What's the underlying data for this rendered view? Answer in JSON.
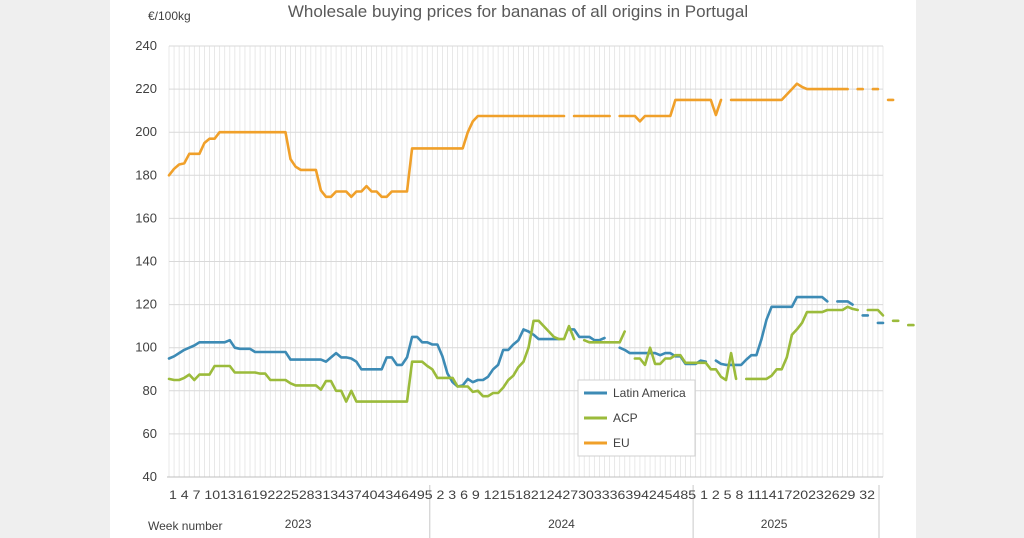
{
  "chart_data": {
    "type": "line",
    "title": "Wholesale buying prices for bananas of all origins in Portugal",
    "unit_label": "€/100kg",
    "xlabel": "Week number",
    "ylim": [
      40,
      240
    ],
    "y_ticks": [
      "40",
      "60",
      "80",
      "100",
      "120",
      "140",
      "160",
      "180",
      "200",
      "220",
      "240"
    ],
    "grid": true,
    "legend_position": "lower-middle",
    "x_tick_text": "1 4 7 10131619222528313437404346495 2 3 6 9 121518212427303336394245485 1 2 5 8 11141720232629 32",
    "years": [
      {
        "label": "2023",
        "start": 1,
        "end": 52
      },
      {
        "label": "2024",
        "start": 53,
        "end": 104
      },
      {
        "label": "2025",
        "start": 105,
        "end": 136
      }
    ],
    "x_week_ticks": [
      {
        "idx": 1,
        "label": "1"
      },
      {
        "idx": 4,
        "label": "4"
      },
      {
        "idx": 7,
        "label": "7"
      },
      {
        "idx": 10,
        "label": "10"
      },
      {
        "idx": 13,
        "label": "13"
      },
      {
        "idx": 16,
        "label": "16"
      },
      {
        "idx": 19,
        "label": "19"
      },
      {
        "idx": 22,
        "label": "22"
      },
      {
        "idx": 25,
        "label": "25"
      },
      {
        "idx": 28,
        "label": "28"
      },
      {
        "idx": 31,
        "label": "31"
      },
      {
        "idx": 34,
        "label": "34"
      },
      {
        "idx": 37,
        "label": "37"
      },
      {
        "idx": 40,
        "label": "40"
      },
      {
        "idx": 43,
        "label": "43"
      },
      {
        "idx": 46,
        "label": "46"
      },
      {
        "idx": 49,
        "label": "49"
      },
      {
        "idx": 52,
        "label": "52"
      },
      {
        "idx": 55,
        "label": "3"
      },
      {
        "idx": 58,
        "label": "6"
      },
      {
        "idx": 61,
        "label": "9"
      },
      {
        "idx": 64,
        "label": "12"
      },
      {
        "idx": 67,
        "label": "15"
      },
      {
        "idx": 70,
        "label": "18"
      },
      {
        "idx": 73,
        "label": "21"
      },
      {
        "idx": 76,
        "label": "24"
      },
      {
        "idx": 79,
        "label": "27"
      },
      {
        "idx": 82,
        "label": "30"
      },
      {
        "idx": 85,
        "label": "33"
      },
      {
        "idx": 88,
        "label": "36"
      },
      {
        "idx": 91,
        "label": "39"
      },
      {
        "idx": 94,
        "label": "42"
      },
      {
        "idx": 97,
        "label": "45"
      },
      {
        "idx": 100,
        "label": "48"
      },
      {
        "idx": 103,
        "label": "51"
      },
      {
        "idx": 106,
        "label": "2"
      },
      {
        "idx": 109,
        "label": "5"
      },
      {
        "idx": 112,
        "label": "8"
      },
      {
        "idx": 115,
        "label": "11"
      },
      {
        "idx": 118,
        "label": "14"
      },
      {
        "idx": 121,
        "label": "17"
      },
      {
        "idx": 124,
        "label": "20"
      },
      {
        "idx": 127,
        "label": "23"
      },
      {
        "idx": 130,
        "label": "26"
      },
      {
        "idx": 133,
        "label": "29"
      },
      {
        "idx": 136,
        "label": "32"
      }
    ],
    "series": [
      {
        "name": "Latin America",
        "color": "#3d8bb5",
        "values": [
          95,
          96,
          97.5,
          99,
          100,
          101,
          102.5,
          102.5,
          102.5,
          102.5,
          102.5,
          102.5,
          103.5,
          100,
          99.5,
          99.5,
          99.5,
          98,
          98,
          98,
          98,
          98,
          98,
          98,
          94.5,
          94.5,
          94.5,
          94.5,
          94.5,
          94.5,
          94.5,
          93.5,
          95.5,
          97.5,
          95.5,
          95.5,
          95,
          93.5,
          90,
          90,
          90,
          90,
          90,
          95.5,
          95.5,
          92,
          92,
          95.5,
          105,
          105,
          102.5,
          102.5,
          101.5,
          101.5,
          96,
          88,
          84,
          82,
          82.5,
          85.5,
          84,
          85,
          85,
          86.5,
          90,
          92,
          99,
          99,
          101.5,
          103.5,
          108.5,
          107.5,
          106,
          104,
          104,
          104,
          104,
          104,
          null,
          108.5,
          108.5,
          105,
          105,
          105,
          103.5,
          103.5,
          104.5,
          null,
          null,
          100,
          99,
          97.5,
          97.5,
          97.5,
          97.5,
          97.5,
          97.5,
          96.5,
          97.5,
          97.5,
          96,
          96,
          92.5,
          92.5,
          92.5,
          94,
          93.5,
          null,
          94,
          92.5,
          92,
          92,
          92,
          92,
          94.5,
          96.5,
          96.5,
          104,
          113,
          119,
          119,
          119,
          119,
          119,
          123.5,
          123.5,
          123.5,
          123.5,
          123.5,
          123.5,
          121.5,
          null,
          121.5,
          121.5,
          121.5,
          120,
          null,
          115,
          115,
          null,
          111.5,
          111.5
        ]
      },
      {
        "name": "ACP",
        "color": "#9bbb3b",
        "values": [
          85.5,
          85,
          85,
          86,
          87.5,
          85,
          87.5,
          87.5,
          87.5,
          91.5,
          91.5,
          91.5,
          91.5,
          88.5,
          88.5,
          88.5,
          88.5,
          88.5,
          88,
          88,
          85,
          85,
          85,
          85,
          83.5,
          82.5,
          82.5,
          82.5,
          82.5,
          82.5,
          80.5,
          84.5,
          84.5,
          80,
          80,
          75,
          80,
          75,
          75,
          75,
          75,
          75,
          75,
          75,
          75,
          75,
          75,
          75,
          93.5,
          93.5,
          93.5,
          91.5,
          90,
          86,
          86,
          86,
          86,
          82,
          82,
          82,
          79.5,
          80,
          77.5,
          77.5,
          79,
          79,
          81.5,
          85,
          87,
          91,
          93.5,
          100,
          112.5,
          112.5,
          110,
          107.5,
          105,
          104,
          104,
          110,
          104,
          null,
          103.5,
          102.5,
          102.5,
          102.5,
          102.5,
          102.5,
          102.5,
          102.5,
          107.5,
          null,
          95,
          95,
          92,
          100,
          92.5,
          92.5,
          95,
          95,
          96.5,
          96.5,
          93,
          93,
          93,
          93,
          93,
          90,
          90,
          86.5,
          85,
          97.5,
          85.5,
          null,
          85.5,
          85.5,
          85.5,
          85.5,
          85.5,
          87,
          90,
          90,
          95.5,
          106,
          108.5,
          111.5,
          116.5,
          116.5,
          116.5,
          116.5,
          117.5,
          117.5,
          117.5,
          117.5,
          119,
          118,
          117.5,
          null,
          117.5,
          117.5,
          117.5,
          115,
          null,
          112.5,
          112.5,
          null,
          110.5,
          110.5
        ]
      },
      {
        "name": "EU",
        "color": "#f0a02a",
        "values": [
          180,
          183,
          185,
          185.5,
          190,
          190,
          190,
          195,
          197,
          197,
          200,
          200,
          200,
          200,
          200,
          200,
          200,
          200,
          200,
          200,
          200,
          200,
          200,
          200,
          187.5,
          184,
          182.5,
          182.5,
          182.5,
          182.5,
          173,
          170,
          170,
          172.5,
          172.5,
          172.5,
          170,
          172.5,
          172.5,
          175,
          172.5,
          172.5,
          170,
          170,
          172.5,
          172.5,
          172.5,
          172.5,
          192.5,
          192.5,
          192.5,
          192.5,
          192.5,
          192.5,
          192.5,
          192.5,
          192.5,
          192.5,
          192.5,
          200,
          205,
          207.5,
          207.5,
          207.5,
          207.5,
          207.5,
          207.5,
          207.5,
          207.5,
          207.5,
          207.5,
          207.5,
          207.5,
          207.5,
          207.5,
          207.5,
          207.5,
          207.5,
          207.5,
          null,
          207.5,
          207.5,
          207.5,
          207.5,
          207.5,
          207.5,
          207.5,
          207.5,
          null,
          207.5,
          207.5,
          207.5,
          207.5,
          205,
          207.5,
          207.5,
          207.5,
          207.5,
          207.5,
          207.5,
          215,
          215,
          215,
          215,
          215,
          215,
          215,
          215,
          208,
          215,
          null,
          215,
          215,
          215,
          215,
          215,
          215,
          215,
          215,
          215,
          215,
          215,
          217.5,
          220,
          222.5,
          221,
          220,
          220,
          220,
          220,
          220,
          220,
          220,
          220,
          220,
          null,
          220,
          220,
          null,
          220,
          220,
          null,
          215,
          215
        ]
      }
    ]
  }
}
